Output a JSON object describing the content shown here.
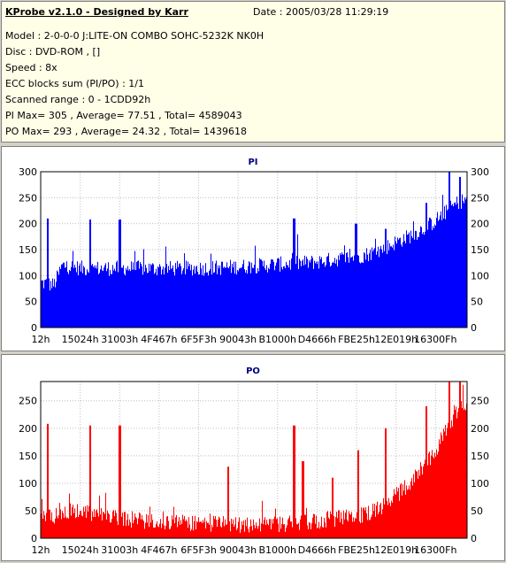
{
  "info": {
    "app_title": "KProbe v2.1.0 - Designed by Karr",
    "date": "Date : 2005/03/28 11:29:19",
    "lines": [
      "Model : 2-0-0-0 J:LITE-ON COMBO SOHC-5232K NK0H",
      "Disc : DVD-ROM ,  []",
      "Speed : 8x",
      "ECC blocks sum (PI/PO) : 1/1",
      "Scanned range : 0 - 1CDD92h",
      "PI Max= 305 , Average= 77.51 , Total= 4589043",
      "PO Max= 293 , Average= 24.32 , Total= 1439618"
    ]
  },
  "colors": {
    "pi": "#0000ff",
    "po": "#ff0000",
    "plot_bg": "#ffffff",
    "title": "#000080"
  },
  "chart_data": [
    {
      "type": "bar",
      "title": "PI",
      "ylim": [
        0,
        300
      ],
      "yticks": [
        0,
        50,
        100,
        150,
        200,
        250,
        300
      ],
      "xticks": [
        "12h",
        "15024h",
        "31003h",
        "4F467h",
        "6F5F3h",
        "90043h",
        "B1000h",
        "D4666h",
        "FBE25h",
        "12E019h",
        "16300Fh"
      ],
      "grid": true,
      "max": 305,
      "average": 77.51,
      "baseline": [
        [
          0,
          85
        ],
        [
          3,
          80
        ],
        [
          5,
          118
        ],
        [
          10,
          112
        ],
        [
          20,
          113
        ],
        [
          30,
          112
        ],
        [
          40,
          113
        ],
        [
          45,
          115
        ],
        [
          50,
          117
        ],
        [
          55,
          120
        ],
        [
          60,
          122
        ],
        [
          65,
          125
        ],
        [
          70,
          131
        ],
        [
          75,
          136
        ],
        [
          78,
          143
        ],
        [
          80,
          149
        ],
        [
          84,
          165
        ],
        [
          88,
          180
        ],
        [
          92,
          200
        ],
        [
          95,
          220
        ],
        [
          98,
          240
        ],
        [
          100,
          245
        ]
      ],
      "spikes": [
        [
          1.5,
          210
        ],
        [
          11.5,
          208
        ],
        [
          18.5,
          208
        ],
        [
          59.5,
          210
        ],
        [
          74,
          200
        ],
        [
          81,
          190
        ],
        [
          90.5,
          240
        ],
        [
          96,
          300
        ],
        [
          98.5,
          290
        ]
      ]
    },
    {
      "type": "bar",
      "title": "PO",
      "ylim": [
        0,
        285
      ],
      "yticks": [
        0,
        50,
        100,
        150,
        200,
        250
      ],
      "xticks": [
        "12h",
        "15024h",
        "31003h",
        "4F467h",
        "6F5F3h",
        "90043h",
        "B1000h",
        "D4666h",
        "FBE25h",
        "12E019h",
        "16300Fh"
      ],
      "grid": true,
      "max": 293,
      "average": 24.32,
      "baseline": [
        [
          0,
          35
        ],
        [
          3,
          38
        ],
        [
          6,
          48
        ],
        [
          10,
          45
        ],
        [
          15,
          38
        ],
        [
          20,
          32
        ],
        [
          30,
          28
        ],
        [
          40,
          25
        ],
        [
          48,
          22
        ],
        [
          55,
          23
        ],
        [
          60,
          27
        ],
        [
          65,
          30
        ],
        [
          70,
          35
        ],
        [
          75,
          40
        ],
        [
          80,
          55
        ],
        [
          84,
          80
        ],
        [
          88,
          110
        ],
        [
          92,
          150
        ],
        [
          95,
          190
        ],
        [
          98,
          230
        ],
        [
          100,
          245
        ]
      ],
      "spikes": [
        [
          1.5,
          208
        ],
        [
          11.5,
          205
        ],
        [
          18.5,
          205
        ],
        [
          44,
          130
        ],
        [
          59.5,
          205
        ],
        [
          61.5,
          140
        ],
        [
          68.5,
          110
        ],
        [
          74.5,
          160
        ],
        [
          81,
          200
        ],
        [
          90.5,
          240
        ],
        [
          96,
          285
        ],
        [
          98.5,
          285
        ]
      ]
    }
  ]
}
